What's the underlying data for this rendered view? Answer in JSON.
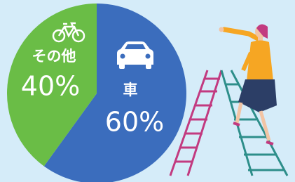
{
  "chart_data": {
    "type": "pie",
    "categories": [
      "車",
      "その他"
    ],
    "values": [
      60,
      40
    ],
    "value_labels": [
      "60%",
      "40%"
    ],
    "colors": [
      "#3b6dbd",
      "#6abd46"
    ]
  }
}
